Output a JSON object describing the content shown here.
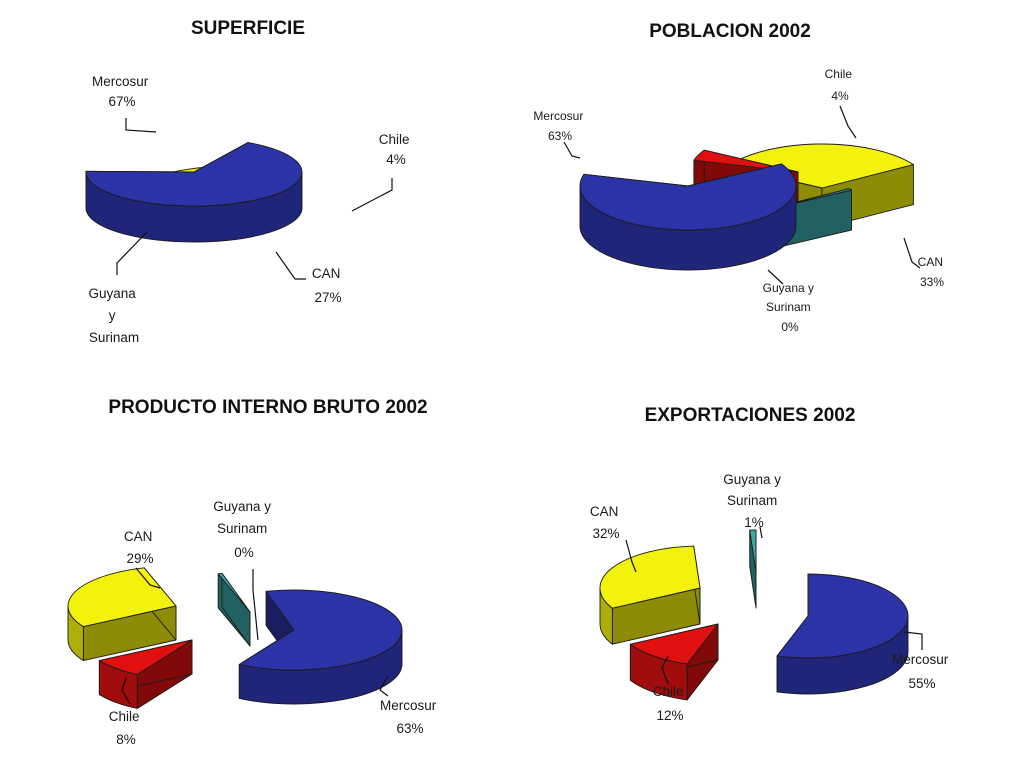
{
  "chart_data": [
    {
      "type": "pie",
      "title": "SUPERFICIE",
      "slices": [
        {
          "label": "Mercosur",
          "value_text": "67%",
          "value": 67,
          "color": "#2b33a6"
        },
        {
          "label": "Chile",
          "value_text": "4%",
          "value": 4,
          "color": "#e01010"
        },
        {
          "label": "CAN",
          "value_text": "27%",
          "value": 27,
          "color": "#f2f20c"
        },
        {
          "label": "Guyana y Surinam",
          "label_lines": [
            "Guyana",
            "y",
            "Surinam"
          ],
          "value_text": "",
          "value": 2,
          "color": "#3aa8a8"
        }
      ]
    },
    {
      "type": "pie",
      "title": "POBLACION 2002",
      "slices": [
        {
          "label": "Mercosur",
          "value_text": "63%",
          "value": 63,
          "color": "#2b33a6"
        },
        {
          "label": "Chile",
          "value_text": "4%",
          "value": 4,
          "color": "#e01010"
        },
        {
          "label": "CAN",
          "value_text": "33%",
          "value": 33,
          "color": "#f2f20c"
        },
        {
          "label": "Guyana y Surinam",
          "label_lines": [
            "Guyana y",
            "Surinam"
          ],
          "value_text": "0%",
          "value": 0,
          "color": "#3aa8a8"
        }
      ]
    },
    {
      "type": "pie",
      "title": "PRODUCTO INTERNO BRUTO 2002",
      "slices": [
        {
          "label": "Mercosur",
          "value_text": "63%",
          "value": 63,
          "color": "#2b33a6"
        },
        {
          "label": "Chile",
          "value_text": "8%",
          "value": 8,
          "color": "#e01010"
        },
        {
          "label": "CAN",
          "value_text": "29%",
          "value": 29,
          "color": "#f2f20c"
        },
        {
          "label": "Guyana y Surinam",
          "label_lines": [
            "Guyana y",
            "Surinam"
          ],
          "value_text": "0%",
          "value": 0,
          "color": "#3aa8a8"
        }
      ]
    },
    {
      "type": "pie",
      "title": "EXPORTACIONES 2002",
      "slices": [
        {
          "label": "Mercosur",
          "value_text": "55%",
          "value": 55,
          "color": "#2b33a6"
        },
        {
          "label": "Chile",
          "value_text": "12%",
          "value": 12,
          "color": "#e01010"
        },
        {
          "label": "CAN",
          "value_text": "32%",
          "value": 32,
          "color": "#f2f20c"
        },
        {
          "label": "Guyana y Surinam",
          "label_lines": [
            "Guyana y",
            "Surinam"
          ],
          "value_text": "1%",
          "value": 1,
          "color": "#3aa8a8"
        }
      ]
    }
  ]
}
